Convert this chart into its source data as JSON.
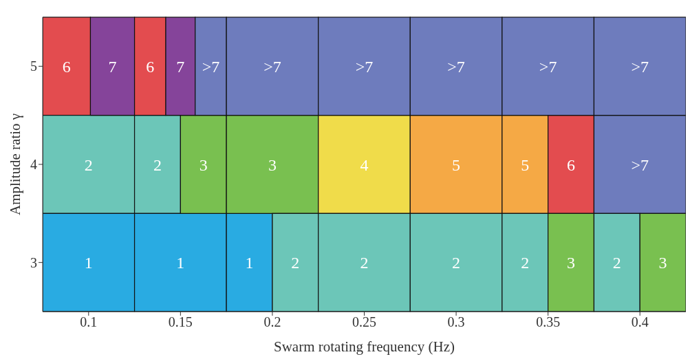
{
  "chart_data": {
    "type": "bar",
    "orientation": "horizontal",
    "xlabel": "Swarm rotating frequency (Hz)",
    "ylabel": "Amplitude ratio γ",
    "categories": [
      "5",
      "4",
      "3"
    ],
    "xlim": [
      0.075,
      0.425
    ],
    "xticks": [
      0.1,
      0.15,
      0.2,
      0.25,
      0.3,
      0.35,
      0.4
    ],
    "grid": false,
    "legend": false,
    "series": [
      {
        "values": [
          0.026,
          0.05,
          0.05
        ],
        "base": [
          0.075,
          0.075,
          0.075
        ],
        "colors": [
          "#e34c4f",
          "#6cc6b8",
          "#29abe2"
        ]
      },
      {
        "values": [
          0.024,
          0.025,
          0.05
        ],
        "base": [
          0.101,
          0.125,
          0.125
        ],
        "colors": [
          "#85449a",
          "#6cc6b8",
          "#29abe2"
        ]
      },
      {
        "values": [
          0.017,
          0.025,
          0.025
        ],
        "base": [
          0.125,
          0.15,
          0.175
        ],
        "colors": [
          "#e34c4f",
          "#79c050",
          "#29abe2"
        ]
      },
      {
        "values": [
          0.016,
          0.05,
          0.025
        ],
        "base": [
          0.142,
          0.175,
          0.2
        ],
        "colors": [
          "#85449a",
          "#79c050",
          "#6cc6b8"
        ]
      },
      {
        "values": [
          0.017,
          0.05,
          0.05
        ],
        "base": [
          0.158,
          0.225,
          0.225
        ],
        "colors": [
          "#6e7cbd",
          "#f0dc4a",
          "#6cc6b8"
        ]
      },
      {
        "values": [
          0.05,
          0.05,
          0.05
        ],
        "base": [
          0.175,
          0.275,
          0.275
        ],
        "colors": [
          "#6e7cbd",
          "#f5a945",
          "#6cc6b8"
        ]
      },
      {
        "values": [
          0.05,
          0.025,
          0.025
        ],
        "base": [
          0.225,
          0.325,
          0.325
        ],
        "colors": [
          "#6e7cbd",
          "#f5a945",
          "#6cc6b8"
        ]
      },
      {
        "values": [
          0.05,
          0.025,
          0.025
        ],
        "base": [
          0.275,
          0.35,
          0.35
        ],
        "colors": [
          "#6e7cbd",
          "#e34c4f",
          "#79c050"
        ]
      },
      {
        "values": [
          0.05,
          0.05,
          0.025
        ],
        "base": [
          0.325,
          0.375,
          0.375
        ],
        "colors": [
          "#6e7cbd",
          "#6e7cbd",
          "#6cc6b8"
        ]
      },
      {
        "values": [
          0.05,
          null,
          0.025
        ],
        "base": [
          0.375,
          null,
          0.4
        ],
        "colors": [
          "#6e7cbd",
          null,
          "#79c050"
        ]
      }
    ],
    "annotations": [
      "6",
      "7",
      "6",
      "7",
      ">7",
      ">7",
      ">7",
      ">7",
      ">7",
      ">7",
      "2",
      "2",
      "3",
      "3",
      "4",
      "5",
      "5",
      "6",
      ">7",
      "1",
      "1",
      "1",
      "2",
      "2",
      "2",
      "2",
      "3",
      "2",
      "3"
    ]
  }
}
